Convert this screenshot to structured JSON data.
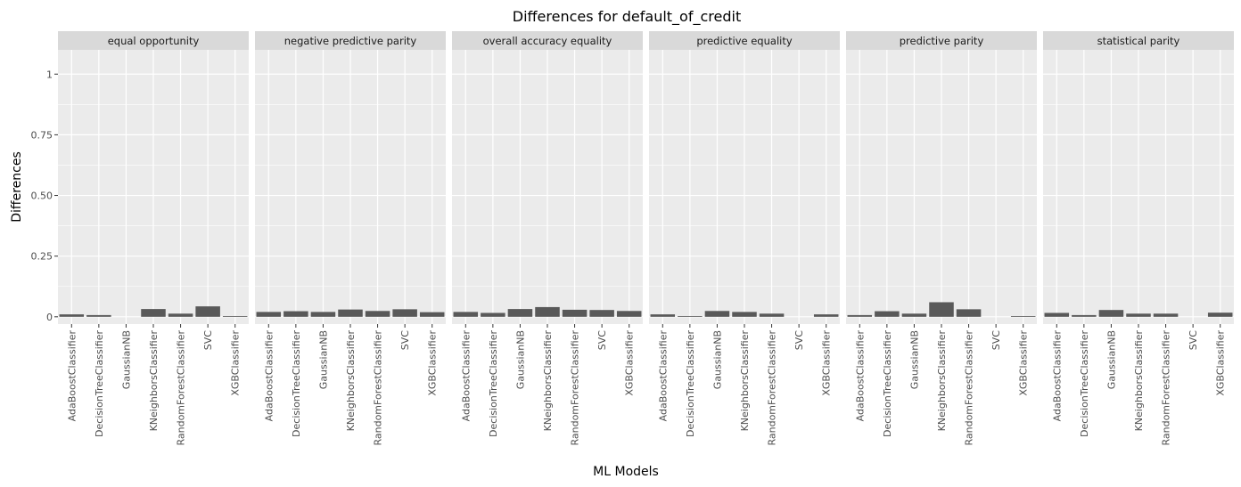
{
  "chart_data": {
    "type": "bar",
    "title": "Differences for default_of_credit",
    "xlabel": "ML Models",
    "ylabel": "Differences",
    "ylim": [
      -0.03,
      1.1
    ],
    "yticks": [
      0,
      0.25,
      0.5,
      0.75,
      1
    ],
    "ytick_labels": [
      "0",
      "0.25",
      "0.50",
      "0.75",
      "1"
    ],
    "grid": true,
    "legend": "none",
    "colors": {
      "bar": "#595959",
      "panel": "#ebebeb",
      "grid": "#ffffff",
      "strip": "#d9d9d9"
    },
    "categories": [
      "AdaBoostClassifier",
      "DecisionTreeClassifier",
      "GaussianNB",
      "KNeighborsClassifier",
      "RandomForestClassifier",
      "SVC",
      "XGBClassifier"
    ],
    "facets": [
      {
        "name": "equal opportunity",
        "values": [
          0.01,
          0.007,
          0,
          0.032,
          0.013,
          0.043,
          0.003
        ]
      },
      {
        "name": "negative predictive parity",
        "values": [
          0.02,
          0.023,
          0.02,
          0.03,
          0.024,
          0.031,
          0.019
        ]
      },
      {
        "name": "overall accuracy equality",
        "values": [
          0.02,
          0.016,
          0.032,
          0.04,
          0.029,
          0.028,
          0.024
        ]
      },
      {
        "name": "predictive equality",
        "values": [
          0.01,
          0.003,
          0.024,
          0.02,
          0.013,
          0,
          0.01
        ]
      },
      {
        "name": "predictive parity",
        "values": [
          0.007,
          0.023,
          0.013,
          0.06,
          0.031,
          0,
          0.003
        ]
      },
      {
        "name": "statistical parity",
        "values": [
          0.016,
          0.007,
          0.028,
          0.013,
          0.013,
          0,
          0.017
        ]
      }
    ]
  }
}
